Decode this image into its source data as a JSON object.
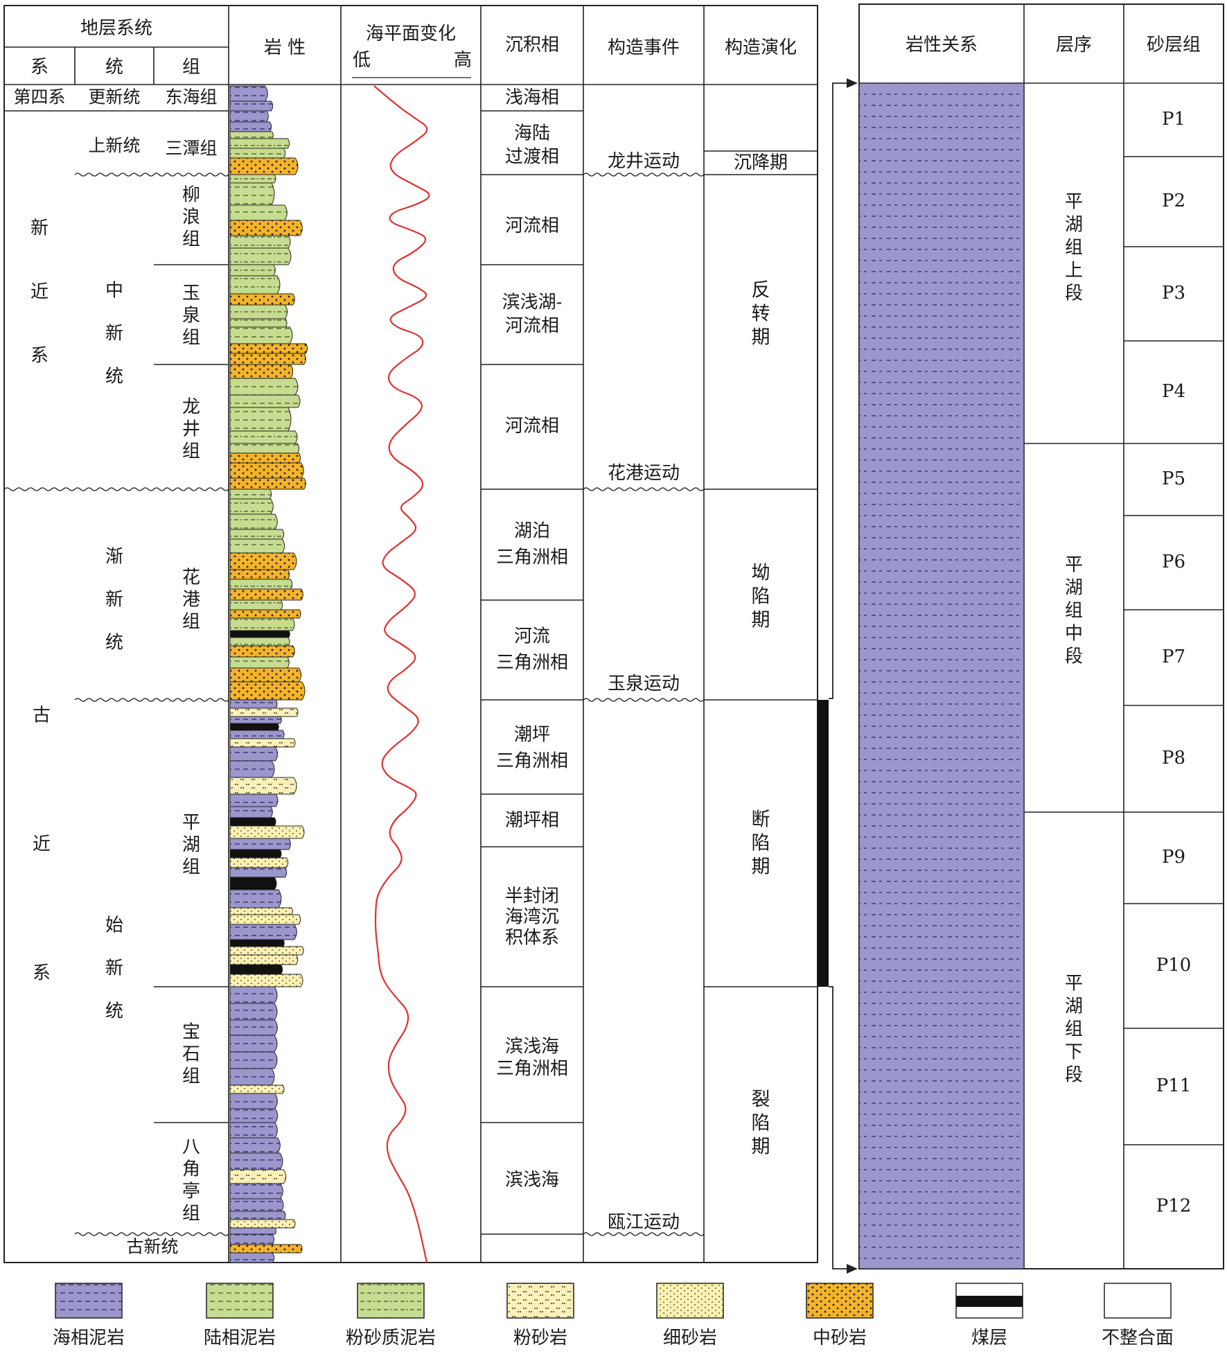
{
  "headers": {
    "strata": "地层系统",
    "system": "系",
    "series": "统",
    "formation": "组",
    "lithology": "岩 性",
    "sea_level": "海平面变化",
    "sea_low": "低",
    "sea_high": "高",
    "facies": "沉积相",
    "tectonic_event": "构造事件",
    "tectonic_evolution": "构造演化",
    "litho_relation": "岩性关系",
    "sequence": "层序",
    "sand_group": "砂层组"
  },
  "systems": [
    "第四系",
    "新近系",
    "古近系"
  ],
  "series": [
    "更新统",
    "上新统",
    "中新统",
    "渐新统",
    "始新统",
    "古新统"
  ],
  "formations": [
    "东海组",
    "三潭组",
    "柳浪组",
    "玉泉组",
    "龙井组",
    "花港组",
    "平湖组",
    "宝石组",
    "八角亭组"
  ],
  "facies": [
    "浅海相",
    "海陆过渡相",
    "河流相",
    "滨浅湖-河流相",
    "河流相",
    "湖泊三角洲相",
    "河流三角洲相",
    "潮坪三角洲相",
    "潮坪相",
    "半封闭海湾沉积体系",
    "滨浅海三角洲相",
    "滨浅海"
  ],
  "tectonic_events": [
    "龙井运动",
    "花港运动",
    "玉泉运动",
    "瓯江运动"
  ],
  "tectonic_evolution": [
    "沉降期",
    "反转期",
    "坳陷期",
    "断陷期",
    "裂陷期"
  ],
  "sequences": [
    "平湖组上段",
    "平湖组中段",
    "平湖组下段"
  ],
  "sand_groups": [
    "P1",
    "P2",
    "P3",
    "P4",
    "P5",
    "P6",
    "P7",
    "P8",
    "P9",
    "P10",
    "P11",
    "P12"
  ],
  "legend": [
    "海相泥岩",
    "陆相泥岩",
    "粉砂质泥岩",
    "粉砂岩",
    "细砂岩",
    "中砂岩",
    "煤层",
    "不整合面"
  ],
  "colors": {
    "marine_mudstone": "#9b96cc",
    "continental_mudstone": "#c6dc90",
    "silty_mudstone": "#c6dc90",
    "siltstone": "#fbf1b8",
    "fine_sandstone": "#fbf1b0",
    "medium_sandstone": "#f4b32a",
    "coal": "#111111",
    "sea_level_curve": "#e03030",
    "relation_orange": "#f7b81c",
    "relation_yellow": "#fbec18",
    "relation_mud": "#9b96cc"
  }
}
